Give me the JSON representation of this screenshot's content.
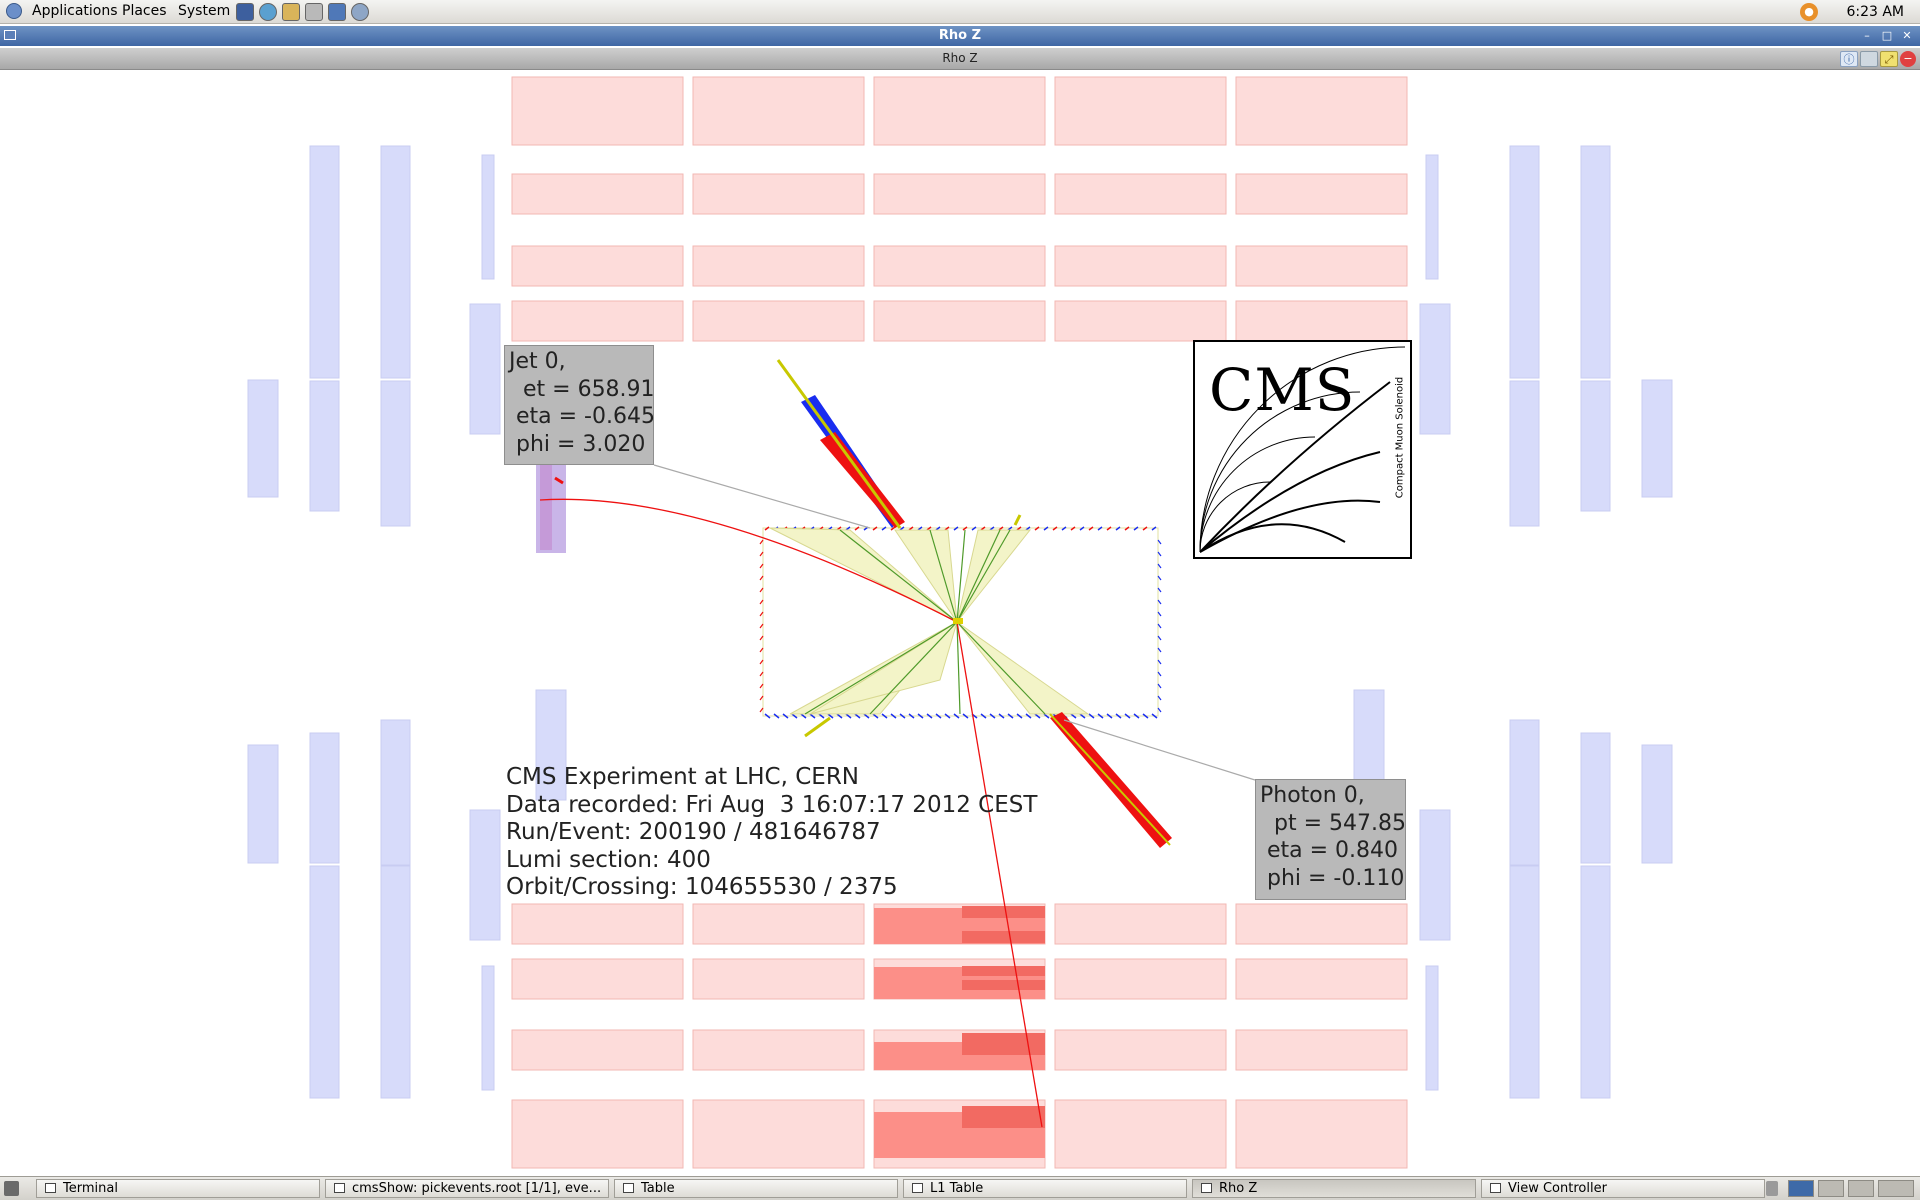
{
  "top_panel": {
    "menus": [
      "Applications",
      "Places",
      "System"
    ],
    "launchers": [
      "terminal-icon",
      "browser-icon",
      "file-manager-icon",
      "editor-icon",
      "screenshot-icon",
      "network-icon"
    ],
    "clock": "6:23 AM"
  },
  "window": {
    "title": "Rho Z"
  },
  "view": {
    "title": "Rho Z",
    "buttons": [
      "info-icon",
      "save-image-icon",
      "maximize-view-icon",
      "close-view-icon"
    ]
  },
  "annotations": {
    "jet": {
      "line1": "Jet 0,",
      "line2": "  et = 658.91",
      "line3": " eta = -0.645",
      "line4": " phi = 3.020"
    },
    "photon": {
      "line1": "Photon 0,",
      "line2": "  pt = 547.85",
      "line3": " eta = 0.840",
      "line4": " phi = -0.110"
    }
  },
  "event_info": {
    "line1": "CMS Experiment at LHC, CERN",
    "line2": "Data recorded: Fri Aug  3 16:07:17 2012 CEST",
    "line3": "Run/Event: 200190 / 481646787",
    "line4": "Lumi section: 400",
    "line5": "Orbit/Crossing: 104655530 / 2375"
  },
  "logo": {
    "text": "CMS",
    "subtitle": "Compact Muon Solenoid"
  },
  "colors": {
    "muon_chamber": "#fddcda",
    "muon_chamber_border": "#f2b7b3",
    "endcap": "#d7dbfa",
    "hit_chamber": "#fc8f88",
    "jet_cone": "#f3f4c8",
    "track": "#ee1111",
    "ecal_blue": "#1a2df0",
    "titlebar": "#4a6fae"
  },
  "taskbar": {
    "tasks": [
      "Terminal",
      "cmsShow: pickevents.root [1/1], eve...",
      "Table",
      "L1 Table",
      "Rho Z",
      "View Controller"
    ],
    "active_task": "Rho Z"
  }
}
